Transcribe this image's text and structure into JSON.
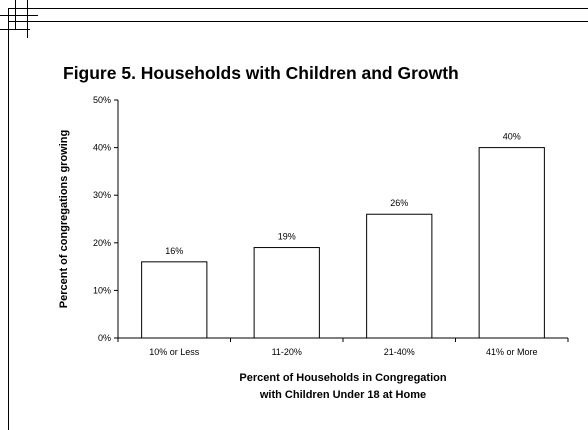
{
  "chart_data": {
    "type": "bar",
    "title": "Figure 5. Households with Children and Growth",
    "categories": [
      "10% or Less",
      "11-20%",
      "21-40%",
      "41% or More"
    ],
    "values": [
      16,
      19,
      26,
      40
    ],
    "data_labels": [
      "16%",
      "19%",
      "26%",
      "40%"
    ],
    "xlabel": [
      "Percent of Households in Congregation",
      "with Children Under 18 at Home"
    ],
    "ylabel": "Percent of congregations growing",
    "ylim": [
      0,
      50
    ],
    "yticks": [
      0,
      10,
      20,
      30,
      40,
      50
    ],
    "ytick_labels": [
      "0%",
      "10%",
      "20%",
      "30%",
      "40%",
      "50%"
    ],
    "grid": false,
    "legend": "none",
    "bar_fill": "#ffffff",
    "bar_stroke": "#000000"
  }
}
